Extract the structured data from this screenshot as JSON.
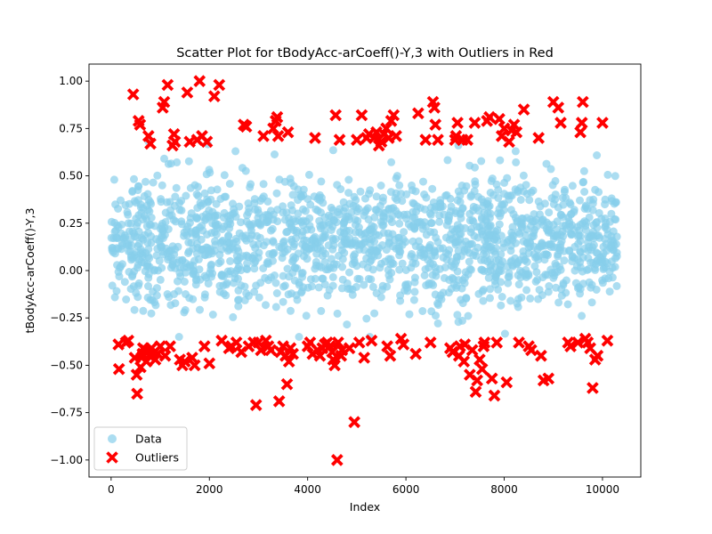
{
  "chart_data": {
    "type": "scatter",
    "title": "Scatter Plot for tBodyAcc-arCoeff()-Y,3 with Outliers in Red",
    "xlabel": "Index",
    "ylabel": "tBodyAcc-arCoeff()-Y,3",
    "xlim": [
      -450,
      10780
    ],
    "ylim": [
      -1.09,
      1.09
    ],
    "xticks": [
      0,
      2000,
      4000,
      6000,
      8000,
      10000
    ],
    "xtick_labels": [
      "0",
      "2000",
      "4000",
      "6000",
      "8000",
      "10000"
    ],
    "yticks": [
      -1.0,
      -0.75,
      -0.5,
      -0.25,
      0.0,
      0.25,
      0.5,
      0.75,
      1.0
    ],
    "ytick_labels": [
      "−1.00",
      "−0.75",
      "−0.50",
      "−0.25",
      "0.00",
      "0.25",
      "0.50",
      "0.75",
      "1.00"
    ],
    "grid": false,
    "legend_position": "lower-left",
    "series": [
      {
        "name": "Data",
        "marker": "circle",
        "color": "#87CEEB",
        "alpha": 0.7,
        "n_points": 10299,
        "x_range": [
          0,
          10298
        ],
        "y_range": [
          -0.35,
          0.68
        ],
        "y_center": 0.15
      },
      {
        "name": "Outliers",
        "marker": "x-filled",
        "color": "#FF0000",
        "points": [
          [
            150,
            -0.39
          ],
          [
            160,
            -0.52
          ],
          [
            300,
            -0.38
          ],
          [
            350,
            -0.37
          ],
          [
            450,
            0.93
          ],
          [
            480,
            -0.46
          ],
          [
            520,
            -0.55
          ],
          [
            530,
            -0.65
          ],
          [
            560,
            0.79
          ],
          [
            590,
            0.77
          ],
          [
            600,
            -0.51
          ],
          [
            620,
            -0.46
          ],
          [
            640,
            -0.44
          ],
          [
            650,
            -0.41
          ],
          [
            700,
            -0.42
          ],
          [
            720,
            -0.48
          ],
          [
            760,
            0.71
          ],
          [
            780,
            -0.45
          ],
          [
            800,
            0.67
          ],
          [
            820,
            -0.41
          ],
          [
            850,
            -0.44
          ],
          [
            900,
            -0.47
          ],
          [
            950,
            -0.44
          ],
          [
            1000,
            -0.4
          ],
          [
            1050,
            0.86
          ],
          [
            1080,
            0.89
          ],
          [
            1100,
            -0.45
          ],
          [
            1150,
            0.98
          ],
          [
            1200,
            -0.4
          ],
          [
            1250,
            0.66
          ],
          [
            1280,
            0.72
          ],
          [
            1300,
            0.68
          ],
          [
            1400,
            -0.47
          ],
          [
            1450,
            -0.5
          ],
          [
            1500,
            -0.48
          ],
          [
            1550,
            0.94
          ],
          [
            1600,
            0.68
          ],
          [
            1650,
            -0.46
          ],
          [
            1700,
            -0.5
          ],
          [
            1750,
            0.69
          ],
          [
            1800,
            1.0
          ],
          [
            1850,
            0.71
          ],
          [
            1900,
            -0.4
          ],
          [
            1950,
            0.68
          ],
          [
            2000,
            -0.49
          ],
          [
            2100,
            0.92
          ],
          [
            2200,
            0.98
          ],
          [
            2250,
            -0.37
          ],
          [
            2400,
            -0.41
          ],
          [
            2450,
            -0.4
          ],
          [
            2550,
            -0.38
          ],
          [
            2650,
            -0.43
          ],
          [
            2700,
            0.77
          ],
          [
            2750,
            0.76
          ],
          [
            2800,
            -0.4
          ],
          [
            2900,
            -0.38
          ],
          [
            2950,
            -0.71
          ],
          [
            3000,
            -0.38
          ],
          [
            3050,
            -0.42
          ],
          [
            3100,
            0.71
          ],
          [
            3150,
            -0.37
          ],
          [
            3200,
            -0.4
          ],
          [
            3250,
            -0.42
          ],
          [
            3300,
            0.75
          ],
          [
            3350,
            0.79
          ],
          [
            3380,
            0.81
          ],
          [
            3400,
            0.71
          ],
          [
            3420,
            -0.69
          ],
          [
            3450,
            -0.43
          ],
          [
            3500,
            -0.4
          ],
          [
            3550,
            -0.45
          ],
          [
            3580,
            -0.6
          ],
          [
            3600,
            0.73
          ],
          [
            3620,
            -0.48
          ],
          [
            3650,
            -0.41
          ],
          [
            3700,
            -0.44
          ],
          [
            4000,
            -0.4
          ],
          [
            4050,
            -0.38
          ],
          [
            4100,
            -0.44
          ],
          [
            4150,
            0.7
          ],
          [
            4200,
            -0.42
          ],
          [
            4250,
            -0.45
          ],
          [
            4300,
            -0.41
          ],
          [
            4350,
            -0.39
          ],
          [
            4400,
            -0.38
          ],
          [
            4450,
            -0.4
          ],
          [
            4500,
            -0.43
          ],
          [
            4520,
            -0.47
          ],
          [
            4550,
            -0.5
          ],
          [
            4570,
            0.82
          ],
          [
            4600,
            -1.0
          ],
          [
            4620,
            -0.38
          ],
          [
            4650,
            0.69
          ],
          [
            4680,
            -0.45
          ],
          [
            4700,
            -0.42
          ],
          [
            4850,
            -0.41
          ],
          [
            4950,
            -0.8
          ],
          [
            5000,
            0.69
          ],
          [
            5050,
            -0.38
          ],
          [
            5100,
            0.82
          ],
          [
            5150,
            -0.46
          ],
          [
            5200,
            0.7
          ],
          [
            5250,
            0.72
          ],
          [
            5300,
            -0.37
          ],
          [
            5350,
            0.7
          ],
          [
            5400,
            0.73
          ],
          [
            5450,
            0.66
          ],
          [
            5500,
            0.68
          ],
          [
            5550,
            0.72
          ],
          [
            5600,
            0.75
          ],
          [
            5620,
            -0.4
          ],
          [
            5650,
            0.7
          ],
          [
            5680,
            -0.45
          ],
          [
            5700,
            0.79
          ],
          [
            5750,
            0.82
          ],
          [
            5800,
            0.71
          ],
          [
            5900,
            -0.36
          ],
          [
            5950,
            -0.39
          ],
          [
            6200,
            -0.44
          ],
          [
            6250,
            0.83
          ],
          [
            6400,
            0.69
          ],
          [
            6500,
            -0.38
          ],
          [
            6550,
            0.89
          ],
          [
            6580,
            0.86
          ],
          [
            6600,
            0.77
          ],
          [
            6650,
            0.69
          ],
          [
            6900,
            -0.41
          ],
          [
            6950,
            -0.43
          ],
          [
            7000,
            0.69
          ],
          [
            7020,
            0.71
          ],
          [
            7050,
            0.78
          ],
          [
            7080,
            -0.45
          ],
          [
            7100,
            -0.4
          ],
          [
            7150,
            0.69
          ],
          [
            7180,
            -0.48
          ],
          [
            7200,
            -0.39
          ],
          [
            7250,
            0.69
          ],
          [
            7300,
            -0.55
          ],
          [
            7350,
            -0.42
          ],
          [
            7400,
            0.78
          ],
          [
            7420,
            -0.64
          ],
          [
            7450,
            -0.58
          ],
          [
            7500,
            -0.47
          ],
          [
            7550,
            -0.52
          ],
          [
            7580,
            -0.4
          ],
          [
            7600,
            -0.38
          ],
          [
            7650,
            0.79
          ],
          [
            7700,
            0.81
          ],
          [
            7750,
            -0.57
          ],
          [
            7800,
            -0.66
          ],
          [
            7850,
            -0.38
          ],
          [
            7900,
            0.8
          ],
          [
            7950,
            0.71
          ],
          [
            8000,
            0.75
          ],
          [
            8050,
            -0.59
          ],
          [
            8100,
            0.68
          ],
          [
            8150,
            0.74
          ],
          [
            8200,
            0.77
          ],
          [
            8250,
            0.73
          ],
          [
            8300,
            -0.38
          ],
          [
            8400,
            0.85
          ],
          [
            8500,
            -0.4
          ],
          [
            8550,
            -0.42
          ],
          [
            8700,
            0.7
          ],
          [
            8750,
            -0.45
          ],
          [
            8800,
            -0.58
          ],
          [
            8900,
            -0.57
          ],
          [
            9000,
            0.89
          ],
          [
            9100,
            0.86
          ],
          [
            9150,
            0.78
          ],
          [
            9300,
            -0.38
          ],
          [
            9350,
            -0.4
          ],
          [
            9500,
            -0.38
          ],
          [
            9550,
            0.73
          ],
          [
            9580,
            0.78
          ],
          [
            9600,
            0.89
          ],
          [
            9650,
            -0.36
          ],
          [
            9700,
            -0.38
          ],
          [
            9750,
            -0.41
          ],
          [
            9800,
            -0.62
          ],
          [
            9850,
            -0.47
          ],
          [
            9900,
            -0.45
          ],
          [
            10000,
            0.78
          ],
          [
            10100,
            -0.37
          ]
        ]
      }
    ]
  }
}
